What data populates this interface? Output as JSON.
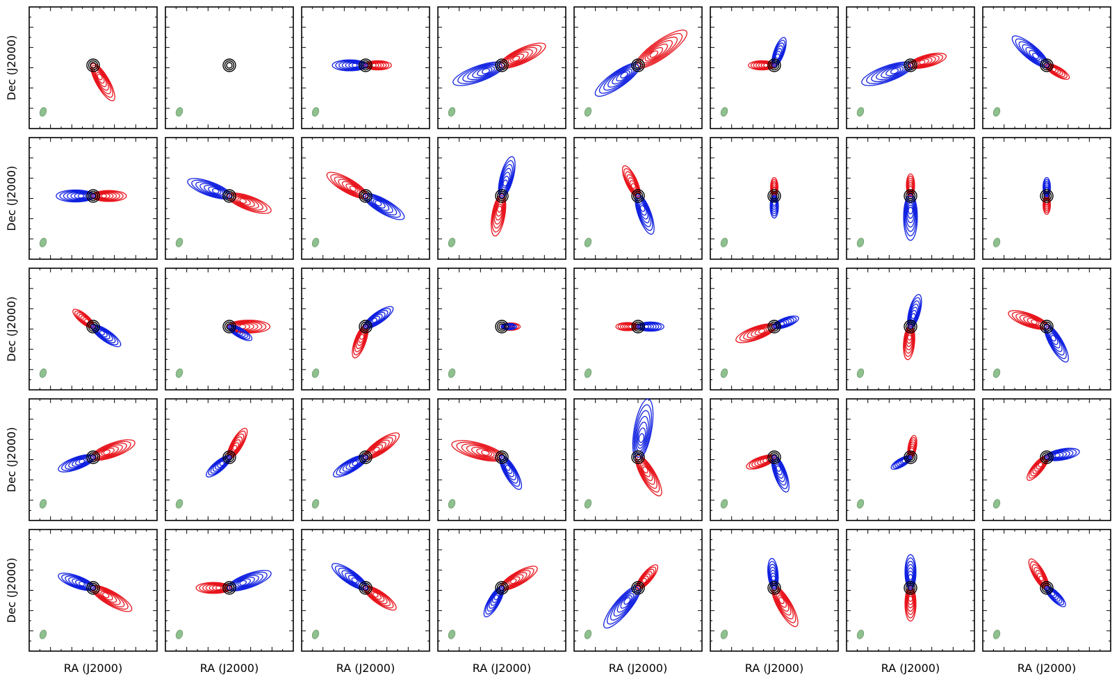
{
  "figure": {
    "x_axis_label": "RA (J2000)",
    "y_axis_label": "Dec (J2000)",
    "grid_rows": 5,
    "grid_cols": 8,
    "colors": {
      "redshifted": "#e8141c",
      "blueshifted": "#1020e0",
      "continuum": "#000000",
      "beam": "#8fc08f"
    },
    "panels": [
      {
        "red": [
          -60,
          0.55
        ],
        "blue": [
          null,
          0
        ],
        "cont": 1
      },
      {
        "red": [
          null,
          0
        ],
        "blue": [
          null,
          0
        ],
        "cont": 1
      },
      {
        "red": [
          0,
          0.35
        ],
        "blue": [
          180,
          0.45
        ],
        "cont": 1
      },
      {
        "red": [
          25,
          0.65
        ],
        "blue": [
          200,
          0.7
        ],
        "cont": 1
      },
      {
        "red": [
          35,
          0.8
        ],
        "blue": [
          215,
          0.7
        ],
        "cont": 1
      },
      {
        "red": [
          180,
          0.35
        ],
        "blue": [
          70,
          0.4
        ],
        "cont": 1
      },
      {
        "red": [
          15,
          0.5
        ],
        "blue": [
          200,
          0.7
        ],
        "cont": 1
      },
      {
        "red": [
          -30,
          0.35
        ],
        "blue": [
          140,
          0.6
        ],
        "cont": 1
      },
      {
        "red": [
          0,
          0.45
        ],
        "blue": [
          180,
          0.5
        ],
        "cont": 1
      },
      {
        "red": [
          -20,
          0.6
        ],
        "blue": [
          160,
          0.6
        ],
        "cont": 1
      },
      {
        "red": [
          150,
          0.6
        ],
        "blue": [
          -30,
          0.6
        ],
        "cont": 1
      },
      {
        "red": [
          -100,
          0.55
        ],
        "blue": [
          75,
          0.55
        ],
        "cont": 1
      },
      {
        "red": [
          115,
          0.45
        ],
        "blue": [
          -70,
          0.55
        ],
        "cont": 1
      },
      {
        "red": [
          90,
          0.25
        ],
        "blue": [
          -90,
          0.3
        ],
        "cont": 1
      },
      {
        "red": [
          90,
          0.3
        ],
        "blue": [
          -90,
          0.6
        ],
        "cont": 1
      },
      {
        "red": [
          -90,
          0.25
        ],
        "blue": [
          90,
          0.25
        ],
        "cont": 1
      },
      {
        "red": [
          140,
          0.35
        ],
        "blue": [
          -35,
          0.45
        ],
        "cont": 1
      },
      {
        "red": [
          0,
          0.55
        ],
        "blue": [
          -30,
          0.35
        ],
        "cont": 1
      },
      {
        "red": [
          -110,
          0.45
        ],
        "blue": [
          35,
          0.45
        ],
        "cont": 1
      },
      {
        "red": [
          0,
          0.25
        ],
        "blue": [
          0,
          0.2
        ],
        "cont": 1
      },
      {
        "red": [
          180,
          0.3
        ],
        "blue": [
          0,
          0.35
        ],
        "cont": 1
      },
      {
        "red": [
          200,
          0.55
        ],
        "blue": [
          20,
          0.35
        ],
        "cont": 1
      },
      {
        "red": [
          -95,
          0.45
        ],
        "blue": [
          75,
          0.45
        ],
        "cont": 1
      },
      {
        "red": [
          160,
          0.55
        ],
        "blue": [
          -60,
          0.55
        ],
        "cont": 1
      },
      {
        "red": [
          20,
          0.6
        ],
        "blue": [
          200,
          0.5
        ],
        "cont": 1
      },
      {
        "red": [
          60,
          0.45
        ],
        "blue": [
          220,
          0.4
        ],
        "cont": 1
      },
      {
        "red": [
          35,
          0.55
        ],
        "blue": [
          210,
          0.5
        ],
        "cont": 1
      },
      {
        "red": [
          165,
          0.7
        ],
        "blue": [
          -60,
          0.5
        ],
        "cont": 1
      },
      {
        "red": [
          -60,
          0.6
        ],
        "blue": [
          80,
          0.8
        ],
        "cont": 1
      },
      {
        "red": [
          200,
          0.4
        ],
        "blue": [
          -70,
          0.5
        ],
        "cont": 1
      },
      {
        "red": [
          80,
          0.3
        ],
        "blue": [
          210,
          0.3
        ],
        "cont": 1
      },
      {
        "red": [
          230,
          0.4
        ],
        "blue": [
          10,
          0.45
        ],
        "cont": 1
      },
      {
        "red": [
          -30,
          0.6
        ],
        "blue": [
          160,
          0.5
        ],
        "cont": 1
      },
      {
        "red": [
          180,
          0.45
        ],
        "blue": [
          20,
          0.6
        ],
        "cont": 1
      },
      {
        "red": [
          -35,
          0.5
        ],
        "blue": [
          145,
          0.55
        ],
        "cont": 1
      },
      {
        "red": [
          30,
          0.55
        ],
        "blue": [
          240,
          0.45
        ],
        "cont": 1
      },
      {
        "red": [
          50,
          0.4
        ],
        "blue": [
          230,
          0.7
        ],
        "cont": 1
      },
      {
        "red": [
          -60,
          0.6
        ],
        "blue": [
          95,
          0.4
        ],
        "cont": 1
      },
      {
        "red": [
          -90,
          0.45
        ],
        "blue": [
          90,
          0.45
        ],
        "cont": 1
      },
      {
        "red": [
          120,
          0.45
        ],
        "blue": [
          -45,
          0.35
        ],
        "cont": 1
      }
    ]
  }
}
